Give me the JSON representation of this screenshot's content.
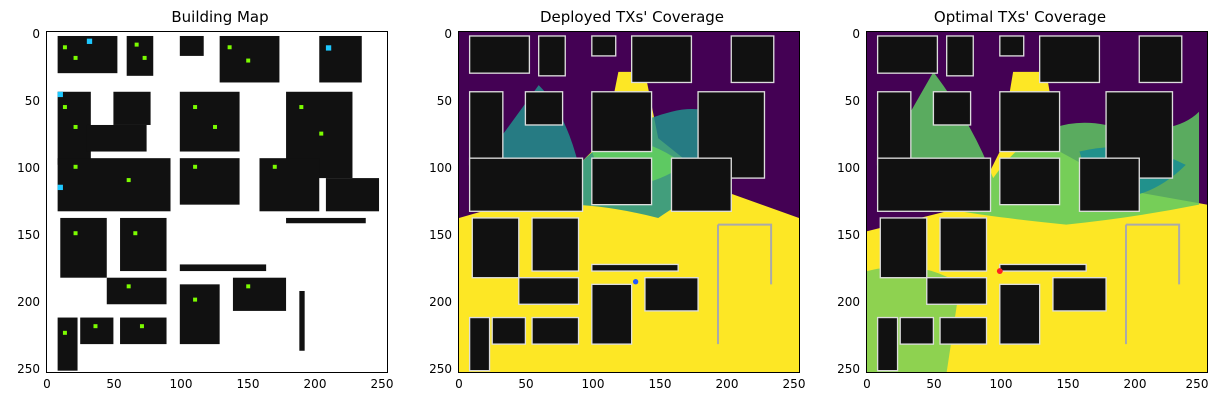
{
  "panels": [
    {
      "title": "Building Map"
    },
    {
      "title": "Deployed TXs' Coverage"
    },
    {
      "title": "Optimal TXs' Coverage"
    }
  ],
  "axes": {
    "x_ticks": [
      "0",
      "50",
      "100",
      "150",
      "200",
      "250"
    ],
    "y_ticks": [
      "0",
      "50",
      "100",
      "150",
      "200",
      "250"
    ],
    "range": [
      0,
      255
    ]
  },
  "colors": {
    "building": "#111111",
    "free_space": "#ffffff",
    "coverage_high": "#fde725",
    "coverage_mid": "#5ec962",
    "coverage_low": "#21918c",
    "coverage_none": "#440154",
    "rx_marker": "#7cfc00",
    "tx_marker": "#1ec8ff",
    "optimal_tx": "#ff2020"
  }
}
